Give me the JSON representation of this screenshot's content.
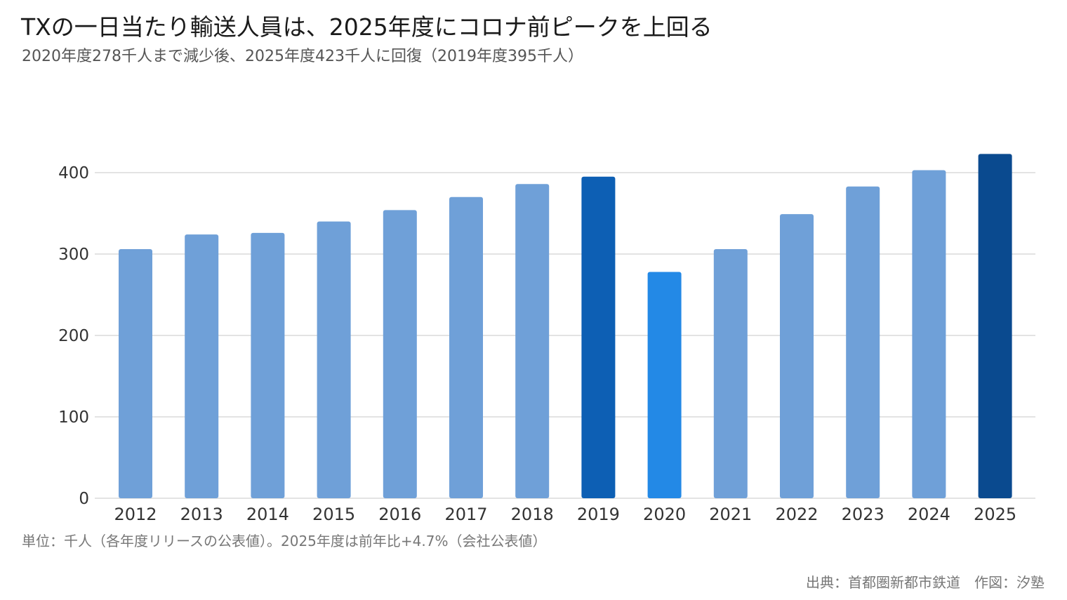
{
  "title": "TXの一日当たり輸送人員は、2025年度にコロナ前ピークを上回る",
  "subtitle": "2020年度278千人まで減少後、2025年度423千人に回復（2019年度395千人）",
  "note": "単位：千人（各年度リリースの公表値）。2025年度は前年比+4.7%（会社公表値）",
  "source": "出典：首都圏新都市鉄道　作図：汐塾",
  "chart_data": {
    "type": "bar",
    "categories": [
      "2012",
      "2013",
      "2014",
      "2015",
      "2016",
      "2017",
      "2018",
      "2019",
      "2020",
      "2021",
      "2022",
      "2023",
      "2024",
      "2025"
    ],
    "values": [
      306,
      324,
      326,
      340,
      354,
      370,
      386,
      395,
      278,
      306,
      349,
      383,
      403,
      423
    ],
    "colors": [
      "#6fa0d8",
      "#6fa0d8",
      "#6fa0d8",
      "#6fa0d8",
      "#6fa0d8",
      "#6fa0d8",
      "#6fa0d8",
      "#0d5fb4",
      "#2389e6",
      "#6fa0d8",
      "#6fa0d8",
      "#6fa0d8",
      "#6fa0d8",
      "#0a4a8f"
    ],
    "yticks": [
      0,
      100,
      200,
      300,
      400
    ],
    "ylim": [
      0,
      423
    ],
    "grid": true,
    "gridColor": "#e3e3e3",
    "title": "TXの一日当たり輸送人員は、2025年度にコロナ前ピークを上回る",
    "xlabel": "",
    "ylabel": ""
  }
}
